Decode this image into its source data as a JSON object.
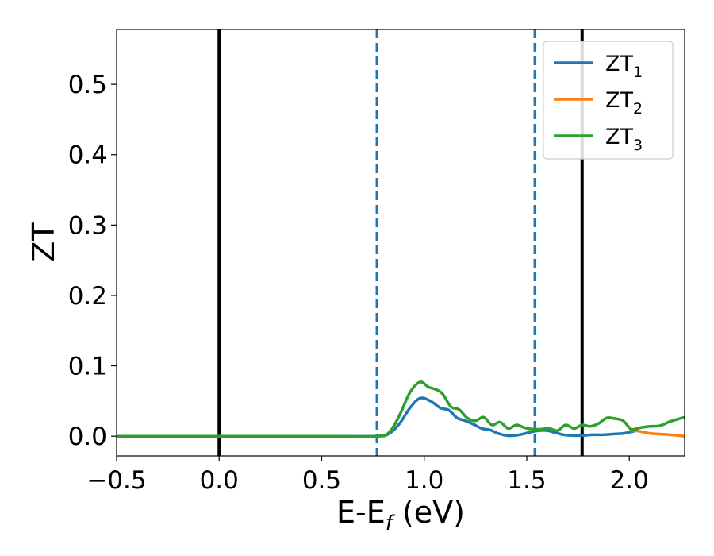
{
  "chart_data": {
    "type": "line",
    "xlabel": "E-E",
    "xlabel_sub": "f",
    "xlabel_unit": " (eV)",
    "ylabel": "ZT",
    "xlim": [
      -0.5,
      2.27
    ],
    "ylim": [
      -0.028,
      0.578
    ],
    "xticks": [
      -0.5,
      0.0,
      0.5,
      1.0,
      1.5,
      2.0
    ],
    "xtick_labels": [
      "−0.5",
      "0.0",
      "0.5",
      "1.0",
      "1.5",
      "2.0"
    ],
    "yticks": [
      0.0,
      0.1,
      0.2,
      0.3,
      0.4,
      0.5
    ],
    "ytick_labels": [
      "0.0",
      "0.1",
      "0.2",
      "0.3",
      "0.4",
      "0.5"
    ],
    "grid": false,
    "legend_position": "top-right",
    "vlines": [
      {
        "x": 0.0,
        "style": "solid",
        "color": "#000000"
      },
      {
        "x": 1.77,
        "style": "solid",
        "color": "#000000"
      },
      {
        "x": 0.77,
        "style": "dashed",
        "color": "#1f77b4"
      },
      {
        "x": 1.54,
        "style": "dashed",
        "color": "#1f77b4"
      }
    ],
    "series": [
      {
        "name": "ZT",
        "sub": "1",
        "color": "#1f77b4",
        "x": [
          -0.5,
          0.0,
          0.5,
          0.77,
          0.83,
          0.88,
          0.93,
          0.98,
          1.03,
          1.08,
          1.12,
          1.16,
          1.2,
          1.24,
          1.28,
          1.32,
          1.36,
          1.4,
          1.44,
          1.48,
          1.52,
          1.56,
          1.6,
          1.64,
          1.68,
          1.72,
          1.77,
          1.82,
          1.87,
          1.92,
          1.97,
          2.02,
          2.05
        ],
        "y": [
          0.0,
          0.0,
          0.0,
          0.0,
          0.004,
          0.018,
          0.04,
          0.054,
          0.05,
          0.04,
          0.037,
          0.026,
          0.022,
          0.017,
          0.011,
          0.009,
          0.004,
          0.001,
          0.001,
          0.003,
          0.006,
          0.008,
          0.008,
          0.005,
          0.002,
          0.001,
          0.001,
          0.002,
          0.002,
          0.003,
          0.004,
          0.007,
          0.009
        ]
      },
      {
        "name": "ZT",
        "sub": "2",
        "color": "#ff7f0e",
        "x": [
          2.0,
          2.05,
          2.1,
          2.15,
          2.2,
          2.27
        ],
        "y": [
          0.009,
          0.007,
          0.004,
          0.003,
          0.002,
          0.0
        ]
      },
      {
        "name": "ZT",
        "sub": "3",
        "color": "#2ca02c",
        "x": [
          -0.5,
          0.0,
          0.5,
          0.77,
          0.83,
          0.88,
          0.93,
          0.98,
          1.02,
          1.06,
          1.09,
          1.13,
          1.17,
          1.21,
          1.25,
          1.29,
          1.33,
          1.37,
          1.41,
          1.45,
          1.49,
          1.53,
          1.57,
          1.61,
          1.65,
          1.69,
          1.73,
          1.77,
          1.81,
          1.85,
          1.89,
          1.93,
          1.97,
          2.01,
          2.05,
          2.1,
          2.15,
          2.2,
          2.27
        ],
        "y": [
          0.0,
          0.0,
          0.0,
          0.0,
          0.006,
          0.03,
          0.062,
          0.077,
          0.07,
          0.066,
          0.06,
          0.042,
          0.038,
          0.026,
          0.022,
          0.027,
          0.016,
          0.02,
          0.011,
          0.016,
          0.012,
          0.01,
          0.01,
          0.011,
          0.008,
          0.016,
          0.011,
          0.016,
          0.014,
          0.018,
          0.026,
          0.025,
          0.022,
          0.01,
          0.012,
          0.014,
          0.015,
          0.021,
          0.027
        ]
      }
    ]
  }
}
